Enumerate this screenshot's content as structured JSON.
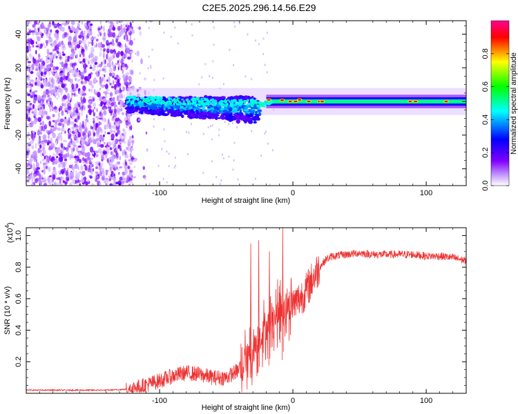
{
  "title": "C2E5.2025.296.14.56.E29",
  "chart_data": [
    {
      "type": "heatmap",
      "title": "C2E5.2025.296.14.56.E29",
      "xlabel": "Height of straight line (km)",
      "ylabel": "Frequency (Hz)",
      "xlim": [
        -200,
        130
      ],
      "ylim": [
        -50,
        48
      ],
      "x_ticks": [
        -100,
        0,
        100
      ],
      "x_tick_labels": [
        "-100",
        "0",
        "100"
      ],
      "y_ticks": [
        -40,
        -20,
        0,
        20,
        40
      ],
      "y_tick_labels": [
        "-40",
        "-20",
        "0",
        "20",
        "40"
      ],
      "colorbar": {
        "label": "Normalized spectral amplitude",
        "range": [
          0,
          1
        ],
        "ticks": [
          0.0,
          0.2,
          0.4,
          0.6,
          0.8
        ],
        "tick_labels": [
          "0.0",
          "0.2",
          "0.4",
          "0.6",
          "0.8"
        ],
        "colors": [
          "#ffffff",
          "#8000ff",
          "#0000ff",
          "#00ffff",
          "#00ff00",
          "#ffff00",
          "#ff0000",
          "#ff00a0"
        ]
      },
      "description_regions": [
        {
          "x_range": [
            -200,
            -125
          ],
          "f_range": [
            -50,
            48
          ],
          "amplitude": 0.15
        },
        {
          "x_range": [
            -125,
            -30
          ],
          "f_range": [
            -8,
            8
          ],
          "amplitude": 0.35
        },
        {
          "x_range": [
            -30,
            130
          ],
          "f_range": [
            -3,
            3
          ],
          "amplitude": 0.5
        }
      ]
    },
    {
      "type": "line",
      "xlabel": "Height of straight line (km)",
      "ylabel": "SNR (10 * v/v)",
      "y_exponent_label": "(x10",
      "y_exponent": "4",
      "y_exponent_close": ")",
      "xlim": [
        -200,
        130
      ],
      "ylim": [
        0,
        1.05
      ],
      "x_ticks": [
        -100,
        0,
        100
      ],
      "x_tick_labels": [
        "-100",
        "0",
        "100"
      ],
      "y_ticks": [
        0.2,
        0.4,
        0.6,
        0.8,
        1.0
      ],
      "y_tick_labels": [
        "0.2",
        "0.4",
        "0.6",
        "0.8",
        "1.0"
      ],
      "series": [
        {
          "name": "SNR",
          "color": "#ee3333",
          "x": [
            -200,
            -180,
            -160,
            -140,
            -125,
            -115,
            -100,
            -90,
            -80,
            -70,
            -60,
            -50,
            -40,
            -35,
            -30,
            -25,
            -20,
            -15,
            -10,
            -5,
            0,
            5,
            10,
            15,
            20,
            25,
            30,
            40,
            50,
            60,
            70,
            80,
            90,
            100,
            110,
            120,
            130
          ],
          "y": [
            0.02,
            0.02,
            0.02,
            0.02,
            0.025,
            0.04,
            0.08,
            0.11,
            0.13,
            0.12,
            0.1,
            0.1,
            0.15,
            0.22,
            0.27,
            0.35,
            0.42,
            0.47,
            0.52,
            0.54,
            0.56,
            0.6,
            0.65,
            0.73,
            0.8,
            0.85,
            0.87,
            0.88,
            0.89,
            0.88,
            0.88,
            0.88,
            0.88,
            0.87,
            0.87,
            0.86,
            0.84
          ],
          "peaks": [
            {
              "x": -32,
              "y": 0.95
            },
            {
              "x": -26,
              "y": 0.97
            },
            {
              "x": -18,
              "y": 0.9
            },
            {
              "x": -8,
              "y": 1.05
            }
          ]
        }
      ]
    }
  ]
}
